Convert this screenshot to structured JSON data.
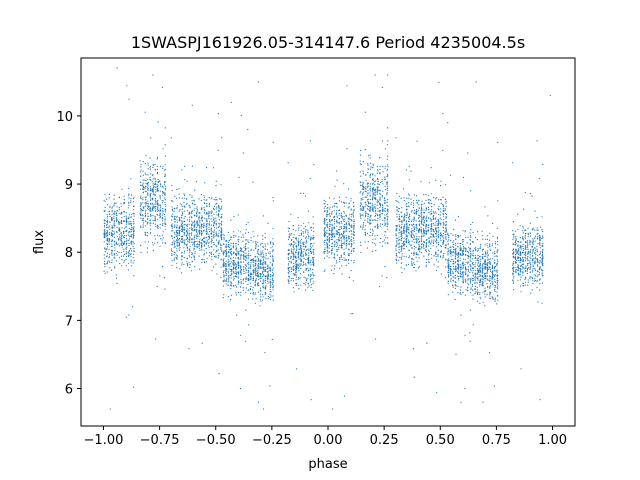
{
  "chart_data": {
    "type": "scatter",
    "title": "1SWASPJ161926.05-314147.6 Period 4235004.5s",
    "xlabel": "phase",
    "ylabel": "flux",
    "xlim": [
      -1.1,
      1.1
    ],
    "ylim": [
      5.45,
      10.85
    ],
    "xticks": [
      -1.0,
      -0.75,
      -0.5,
      -0.25,
      0.0,
      0.25,
      0.5,
      0.75,
      1.0
    ],
    "xtick_labels": [
      "−1.00",
      "−0.75",
      "−0.50",
      "−0.25",
      "0.00",
      "0.25",
      "0.50",
      "0.75",
      "1.00"
    ],
    "yticks": [
      6,
      7,
      8,
      9,
      10
    ],
    "ytick_labels": [
      "6",
      "7",
      "8",
      "9",
      "10"
    ],
    "grid": false,
    "legend": "none",
    "marker_color": "#1f77b4",
    "segments": [
      {
        "x": [
          -1.0,
          -0.86
        ],
        "y_mean": 8.3,
        "y_spread": 0.45
      },
      {
        "x": [
          -0.84,
          -0.72
        ],
        "y_mean": 8.75,
        "y_spread": 0.55
      },
      {
        "x": [
          -0.7,
          -0.6
        ],
        "y_mean": 8.3,
        "y_spread": 0.45
      },
      {
        "x": [
          -0.6,
          -0.47
        ],
        "y_mean": 8.35,
        "y_spread": 0.45
      },
      {
        "x": [
          -0.47,
          -0.36
        ],
        "y_mean": 7.85,
        "y_spread": 0.4
      },
      {
        "x": [
          -0.36,
          -0.24
        ],
        "y_mean": 7.75,
        "y_spread": 0.4
      },
      {
        "x": [
          -0.18,
          -0.06
        ],
        "y_mean": 7.95,
        "y_spread": 0.4
      },
      {
        "x": [
          -0.02,
          0.12
        ],
        "y_mean": 8.3,
        "y_spread": 0.45
      },
      {
        "x": [
          0.14,
          0.27
        ],
        "y_mean": 8.75,
        "y_spread": 0.55
      },
      {
        "x": [
          0.3,
          0.4
        ],
        "y_mean": 8.3,
        "y_spread": 0.45
      },
      {
        "x": [
          0.4,
          0.53
        ],
        "y_mean": 8.35,
        "y_spread": 0.45
      },
      {
        "x": [
          0.53,
          0.64
        ],
        "y_mean": 7.85,
        "y_spread": 0.4
      },
      {
        "x": [
          0.64,
          0.76
        ],
        "y_mean": 7.75,
        "y_spread": 0.4
      },
      {
        "x": [
          0.82,
          0.96
        ],
        "y_mean": 7.95,
        "y_spread": 0.4
      }
    ],
    "outliers": [
      {
        "x": -0.78,
        "y": 10.6
      },
      {
        "x": -0.31,
        "y": 10.5
      },
      {
        "x": 0.21,
        "y": 10.6
      },
      {
        "x": 0.66,
        "y": 10.5
      },
      {
        "x": -0.97,
        "y": 5.7
      },
      {
        "x": -0.31,
        "y": 5.8
      },
      {
        "x": 0.02,
        "y": 5.7
      },
      {
        "x": 0.69,
        "y": 5.8
      },
      {
        "x": -0.39,
        "y": 6.0
      },
      {
        "x": 0.61,
        "y": 6.0
      },
      {
        "x": 0.99,
        "y": 10.3
      },
      {
        "x": -0.43,
        "y": 10.2
      },
      {
        "x": 0.11,
        "y": 7.1
      },
      {
        "x": -0.87,
        "y": 7.2
      },
      {
        "x": 0.57,
        "y": 6.5
      }
    ]
  }
}
